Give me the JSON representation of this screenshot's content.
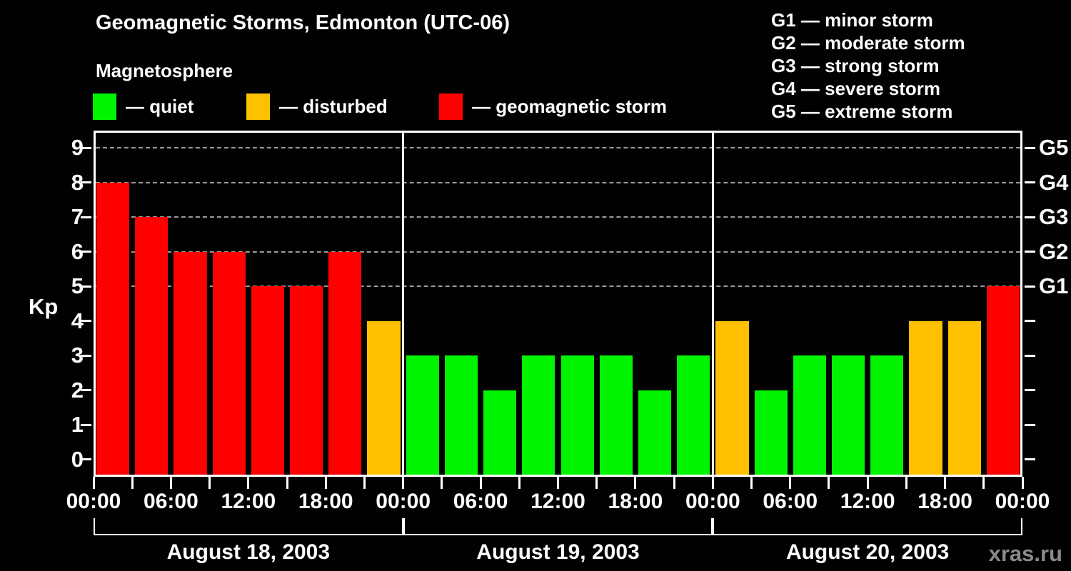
{
  "header": {
    "title": "Geomagnetic Storms, Edmonton (UTC-06)",
    "subtitle": "Magnetosphere",
    "legend": [
      {
        "key": "quiet",
        "label": "— quiet",
        "color": "#00f400"
      },
      {
        "key": "disturbed",
        "label": "— disturbed",
        "color": "#ffc000"
      },
      {
        "key": "storm",
        "label": "— geomagnetic storm",
        "color": "#ff0000"
      }
    ],
    "g_scale_legend": [
      "G1 — minor storm",
      "G2 — moderate storm",
      "G3 — strong storm",
      "G4 — severe storm",
      "G5 — extreme storm"
    ]
  },
  "watermark": "xras.ru",
  "chart_data": {
    "type": "bar",
    "title": "Geomagnetic Storms, Edmonton (UTC-06)",
    "subtitle": "Magnetosphere",
    "ylabel": "Kp",
    "ylim": [
      -0.5,
      9.5
    ],
    "y_ticks": [
      0,
      1,
      2,
      3,
      4,
      5,
      6,
      7,
      8,
      9
    ],
    "gridlines_at": [
      5,
      6,
      7,
      8,
      9
    ],
    "grid": "dashed horizontal at storm levels only",
    "legend_position": "top",
    "bar_interval_hours": 3,
    "x_tick_labels": [
      "00:00",
      "06:00",
      "12:00",
      "18:00",
      "00:00",
      "06:00",
      "12:00",
      "18:00",
      "00:00",
      "06:00",
      "12:00",
      "18:00",
      "00:00"
    ],
    "right_axis_labels": [
      {
        "kp": 5,
        "label": "G1"
      },
      {
        "kp": 6,
        "label": "G2"
      },
      {
        "kp": 7,
        "label": "G3"
      },
      {
        "kp": 8,
        "label": "G4"
      },
      {
        "kp": 9,
        "label": "G5"
      }
    ],
    "days": [
      {
        "date": "August 18, 2003",
        "values": [
          8,
          7,
          6,
          6,
          5,
          5,
          6,
          4
        ]
      },
      {
        "date": "August 19, 2003",
        "values": [
          3,
          3,
          2,
          3,
          3,
          3,
          2,
          3
        ]
      },
      {
        "date": "August 20, 2003",
        "values": [
          4,
          2,
          3,
          3,
          3,
          4,
          4,
          5
        ]
      }
    ],
    "color_rule": {
      "quiet_max_kp": 3,
      "disturbed_kp": 4,
      "storm_min_kp": 5,
      "colors": {
        "quiet": "#00f400",
        "disturbed": "#ffc000",
        "storm": "#ff0000"
      }
    }
  }
}
